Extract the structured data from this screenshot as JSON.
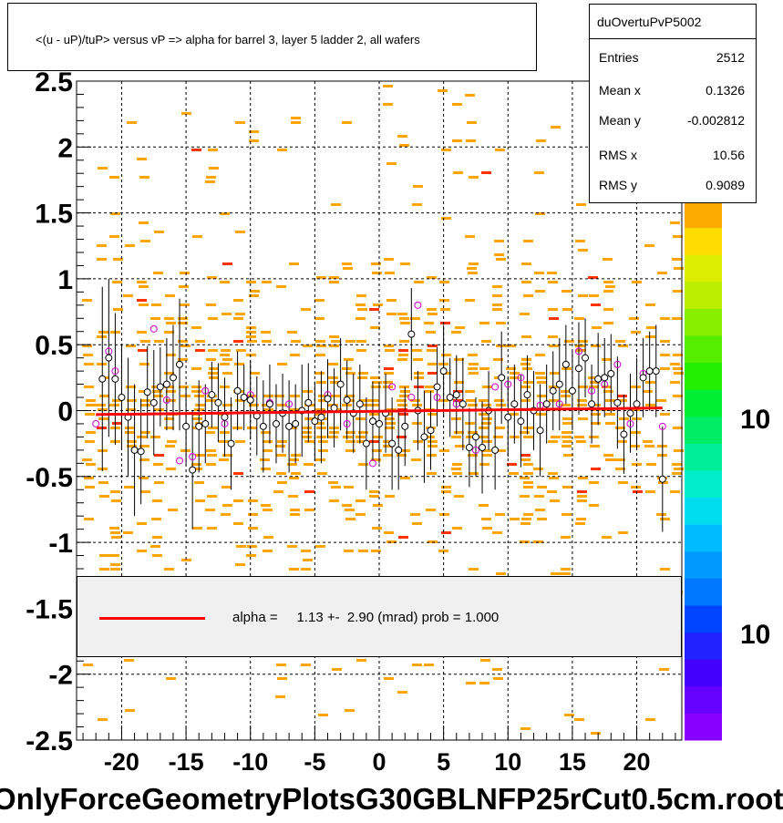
{
  "title": "<(u - uP)/tuP> versus   vP => alpha for barrel 3, layer 5 ladder 2, all wafers",
  "stats": {
    "name": "duOvertuPvP5002",
    "rows": [
      {
        "label": "Entries",
        "value": "2512"
      },
      {
        "label": "Mean x",
        "value": "0.1326"
      },
      {
        "label": "Mean y",
        "value": "-0.002812"
      },
      {
        "label": "RMS x",
        "value": "10.56"
      },
      {
        "label": "RMS y",
        "value": "0.9089"
      }
    ]
  },
  "fit_legend": {
    "text": "alpha =     1.13 +-  2.90 (mrad) prob = 1.000",
    "line_color": "#ff0000"
  },
  "bottom_label": "OnlyForceGeometryPlotsG30GBLNFP25rCut0.5cm.root",
  "colorbar_labels": [
    "10",
    "10"
  ],
  "colors": {
    "histogram_cells": "#ffa500",
    "histogram_dense": "#ff3300",
    "mean_markers": "#000000",
    "alt_markers": "#cc00cc",
    "fit_line": "#ff0000",
    "grid": "#000000"
  },
  "chart_data": {
    "type": "scatter",
    "title": "<(u - uP)/tuP> versus   vP => alpha for barrel 3, layer 5 ladder 2, all wafers",
    "xlabel": "",
    "ylabel": "",
    "xlim": [
      -23.5,
      23.5
    ],
    "ylim": [
      -2.5,
      2.5
    ],
    "x_ticks": [
      -20,
      -15,
      -10,
      -5,
      0,
      5,
      10,
      15,
      20
    ],
    "x_tick_labels": [
      "-20",
      "-15",
      "-10",
      "-5",
      "0",
      "5",
      "10",
      "15",
      "20"
    ],
    "y_ticks": [
      -2.5,
      -2,
      -1.5,
      -1,
      -0.5,
      0,
      0.5,
      1,
      1.5,
      2,
      2.5
    ],
    "y_tick_labels": [
      "-2.5",
      "-2",
      "-1.5",
      "-1",
      "-0.5",
      "0",
      "0.5",
      "1",
      "1.5",
      "2",
      "2.5"
    ],
    "grid": true,
    "fit": {
      "slope": 0.00113,
      "intercept": -0.005,
      "x_range": [
        -22,
        22
      ]
    },
    "series": [
      {
        "marker": "open-circle-black",
        "points": [
          [
            -21.5,
            0.24,
            0.7
          ],
          [
            -21.0,
            0.4,
            0.6
          ],
          [
            -20.5,
            0.24,
            0.5
          ],
          [
            -20.0,
            0.1,
            0.4
          ],
          [
            -19.5,
            -0.05,
            0.45
          ],
          [
            -19.0,
            -0.3,
            0.5
          ],
          [
            -18.5,
            -0.31,
            0.4
          ],
          [
            -18.0,
            0.14,
            0.35
          ],
          [
            -17.5,
            0.06,
            0.4
          ],
          [
            -17.0,
            0.18,
            0.3
          ],
          [
            -16.5,
            0.2,
            0.35
          ],
          [
            -16.0,
            0.25,
            0.4
          ],
          [
            -15.5,
            0.35,
            0.5
          ],
          [
            -15.0,
            -0.12,
            0.3
          ],
          [
            -14.5,
            -0.45,
            0.45
          ],
          [
            -14.0,
            -0.12,
            0.35
          ],
          [
            -13.5,
            -0.1,
            0.3
          ],
          [
            -13.0,
            0.12,
            0.25
          ],
          [
            -12.5,
            0.06,
            0.3
          ],
          [
            -12.0,
            -0.05,
            0.3
          ],
          [
            -11.5,
            -0.25,
            0.35
          ],
          [
            -11.0,
            0.15,
            0.3
          ],
          [
            -10.5,
            0.1,
            0.25
          ],
          [
            -10.0,
            0.08,
            0.3
          ],
          [
            -9.5,
            -0.04,
            0.3
          ],
          [
            -9.0,
            -0.12,
            0.35
          ],
          [
            -8.5,
            0.05,
            0.3
          ],
          [
            -8.0,
            -0.1,
            0.3
          ],
          [
            -7.5,
            -0.02,
            0.3
          ],
          [
            -7.0,
            -0.12,
            0.35
          ],
          [
            -6.5,
            -0.1,
            0.3
          ],
          [
            -6.0,
            0.0,
            0.35
          ],
          [
            -5.5,
            0.06,
            0.3
          ],
          [
            -5.0,
            -0.08,
            0.3
          ],
          [
            -4.5,
            -0.05,
            0.35
          ],
          [
            -4.0,
            0.09,
            0.3
          ],
          [
            -3.5,
            0.02,
            0.3
          ],
          [
            -3.0,
            0.2,
            0.35
          ],
          [
            -2.5,
            0.08,
            0.3
          ],
          [
            -2.0,
            -0.02,
            0.3
          ],
          [
            -1.5,
            0.05,
            0.3
          ],
          [
            -1.0,
            -0.25,
            0.35
          ],
          [
            -0.5,
            -0.08,
            0.3
          ],
          [
            0.0,
            -0.1,
            0.3
          ],
          [
            0.5,
            -0.02,
            0.3
          ],
          [
            1.0,
            -0.25,
            0.35
          ],
          [
            1.5,
            -0.3,
            0.3
          ],
          [
            2.0,
            -0.12,
            0.3
          ],
          [
            2.5,
            0.58,
            0.35
          ],
          [
            3.0,
            0.0,
            0.3
          ],
          [
            3.5,
            -0.2,
            0.35
          ],
          [
            4.0,
            -0.15,
            0.3
          ],
          [
            4.5,
            0.18,
            0.3
          ],
          [
            5.0,
            0.3,
            0.35
          ],
          [
            5.5,
            0.1,
            0.3
          ],
          [
            6.0,
            0.12,
            0.3
          ],
          [
            6.5,
            0.05,
            0.35
          ],
          [
            7.0,
            -0.28,
            0.3
          ],
          [
            7.5,
            -0.2,
            0.3
          ],
          [
            8.0,
            -0.28,
            0.35
          ],
          [
            8.5,
            0.0,
            0.3
          ],
          [
            9.0,
            -0.3,
            0.3
          ],
          [
            9.5,
            0.25,
            0.35
          ],
          [
            10.0,
            -0.05,
            0.3
          ],
          [
            10.5,
            0.05,
            0.3
          ],
          [
            11.0,
            -0.08,
            0.35
          ],
          [
            11.5,
            0.12,
            0.3
          ],
          [
            12.0,
            0.0,
            0.3
          ],
          [
            12.5,
            -0.15,
            0.35
          ],
          [
            13.0,
            0.05,
            0.3
          ],
          [
            13.5,
            0.15,
            0.3
          ],
          [
            14.0,
            0.2,
            0.35
          ],
          [
            14.5,
            0.35,
            0.3
          ],
          [
            15.0,
            0.15,
            0.3
          ],
          [
            15.5,
            0.32,
            0.35
          ],
          [
            16.0,
            0.4,
            0.3
          ],
          [
            16.5,
            0.05,
            0.3
          ],
          [
            17.0,
            0.24,
            0.35
          ],
          [
            17.5,
            0.25,
            0.3
          ],
          [
            18.0,
            0.28,
            0.3
          ],
          [
            18.5,
            0.06,
            0.35
          ],
          [
            19.0,
            -0.18,
            0.3
          ],
          [
            19.5,
            -0.02,
            0.3
          ],
          [
            20.0,
            0.05,
            0.35
          ],
          [
            20.5,
            0.25,
            0.3
          ],
          [
            21.0,
            0.3,
            0.3
          ],
          [
            21.5,
            0.3,
            0.35
          ],
          [
            22.0,
            -0.52,
            0.4
          ]
        ]
      },
      {
        "marker": "open-circle-magenta",
        "points": [
          [
            -22.0,
            -0.1
          ],
          [
            -21.0,
            0.45
          ],
          [
            -20.5,
            0.3
          ],
          [
            -17.5,
            0.62
          ],
          [
            -16.5,
            0.08
          ],
          [
            -15.5,
            -0.38
          ],
          [
            -14.5,
            -0.35
          ],
          [
            -13.5,
            0.15
          ],
          [
            -12.0,
            -0.1
          ],
          [
            -10.0,
            0.12
          ],
          [
            -8.5,
            0.06
          ],
          [
            -7.0,
            0.05
          ],
          [
            -4.0,
            0.12
          ],
          [
            -2.5,
            -0.1
          ],
          [
            -0.5,
            -0.4
          ],
          [
            1.0,
            0.18
          ],
          [
            2.5,
            0.1
          ],
          [
            3.0,
            0.8
          ],
          [
            4.5,
            0.1
          ],
          [
            6.0,
            0.05
          ],
          [
            7.5,
            -0.3
          ],
          [
            9.0,
            0.18
          ],
          [
            10.0,
            0.2
          ],
          [
            11.0,
            0.25
          ],
          [
            12.5,
            0.04
          ],
          [
            14.0,
            0.05
          ],
          [
            15.5,
            0.45
          ],
          [
            16.5,
            0.15
          ],
          [
            17.5,
            0.2
          ],
          [
            18.5,
            0.35
          ],
          [
            19.5,
            -0.1
          ],
          [
            20.5,
            0.28
          ],
          [
            22.0,
            -0.12
          ]
        ]
      }
    ]
  }
}
